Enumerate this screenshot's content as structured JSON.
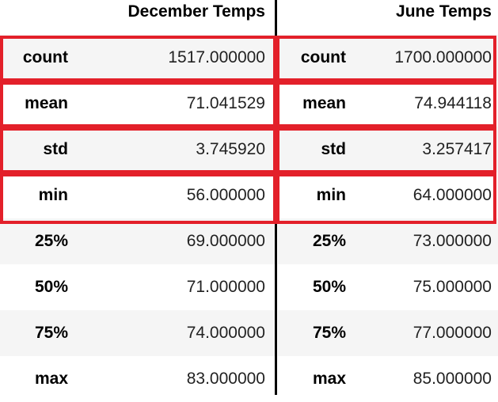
{
  "tables": [
    {
      "header": "December Temps",
      "rows": [
        {
          "label": "count",
          "value": "1517.000000"
        },
        {
          "label": "mean",
          "value": "71.041529"
        },
        {
          "label": "std",
          "value": "3.745920"
        },
        {
          "label": "min",
          "value": "56.000000"
        },
        {
          "label": "25%",
          "value": "69.000000"
        },
        {
          "label": "50%",
          "value": "71.000000"
        },
        {
          "label": "75%",
          "value": "74.000000"
        },
        {
          "label": "max",
          "value": "83.000000"
        }
      ]
    },
    {
      "header": "June Temps",
      "rows": [
        {
          "label": "count",
          "value": "1700.000000"
        },
        {
          "label": "mean",
          "value": "74.944118"
        },
        {
          "label": "std",
          "value": "3.257417"
        },
        {
          "label": "min",
          "value": "64.000000"
        },
        {
          "label": "25%",
          "value": "73.000000"
        },
        {
          "label": "50%",
          "value": "75.000000"
        },
        {
          "label": "75%",
          "value": "77.000000"
        },
        {
          "label": "max",
          "value": "85.000000"
        }
      ]
    }
  ],
  "highlight": {
    "color": "#e3202a",
    "rows": [
      "count",
      "mean",
      "std",
      "min"
    ]
  },
  "colors": {
    "row_shade": "#f5f5f5",
    "divider": "#000000"
  }
}
